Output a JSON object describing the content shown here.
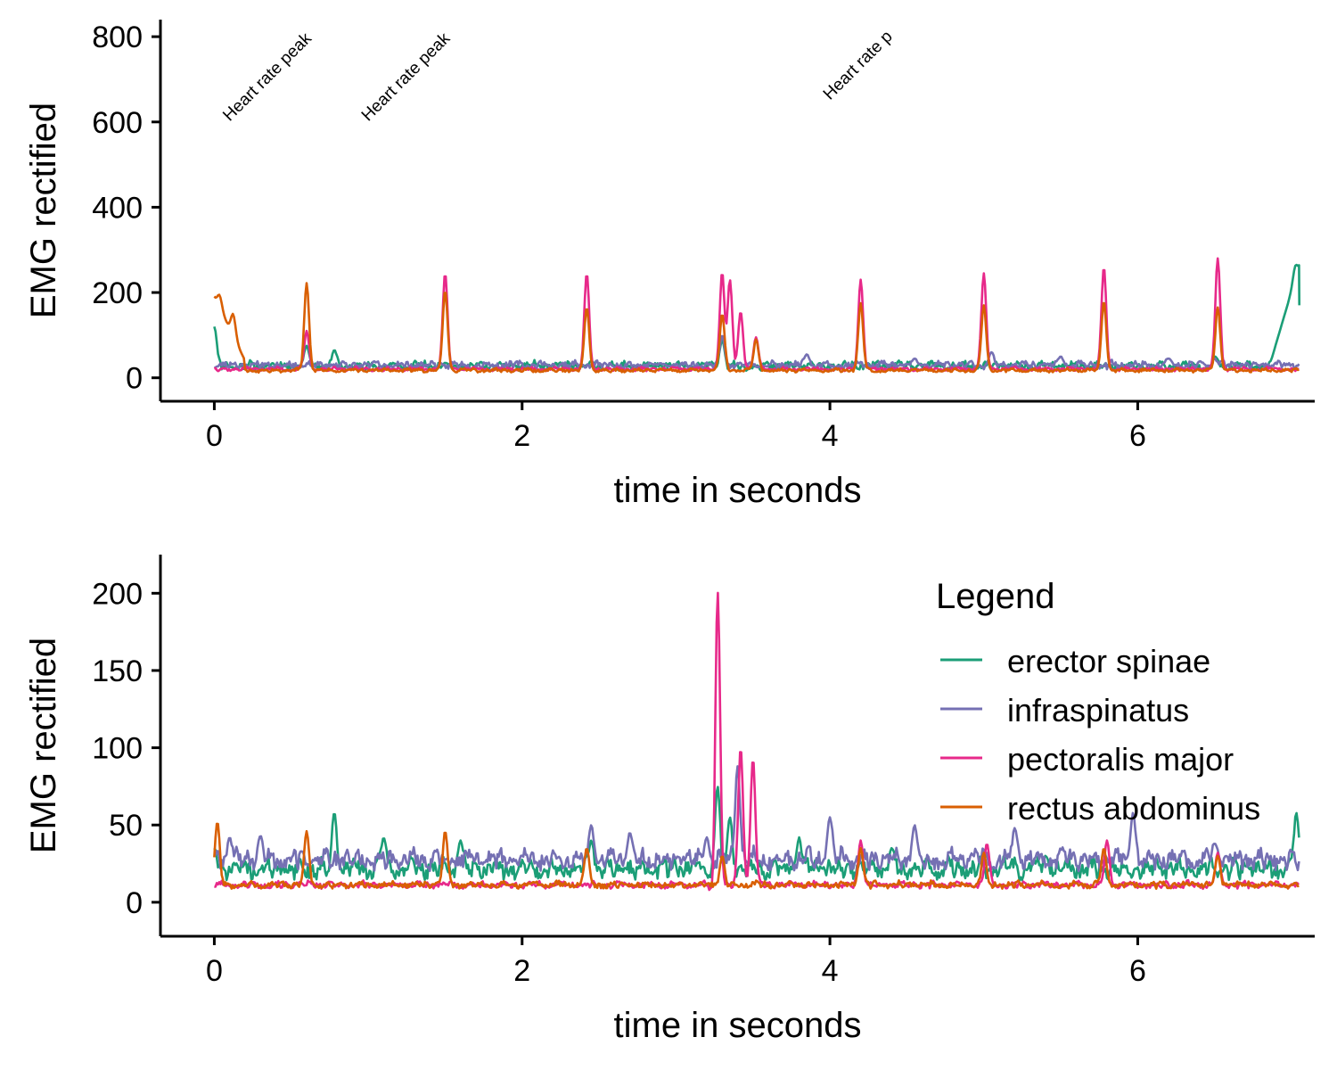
{
  "chart_data": [
    {
      "type": "line",
      "xlabel": "time in seconds",
      "ylabel": "EMG rectified",
      "xlim": [
        -0.35,
        7.15
      ],
      "ylim": [
        -55,
        840
      ],
      "x_ticks": [
        0,
        2,
        4,
        6
      ],
      "y_ticks": [
        0,
        200,
        400,
        600,
        800
      ],
      "grid": false,
      "legend": "none",
      "annotations": [
        {
          "text": "Heart rate peak",
          "x": 0.1,
          "y": 600
        },
        {
          "text": "Heart rate peak",
          "x": 1.0,
          "y": 600
        },
        {
          "text": "Heart rate p",
          "x": 4.0,
          "y": 650
        }
      ],
      "series": [
        {
          "name": "erector spinae",
          "color": "#1B9E77",
          "baseline": 22,
          "noise": 14,
          "seed": 11,
          "spikes": [
            [
              0.0,
              120
            ],
            [
              0.6,
              75
            ],
            [
              0.78,
              65
            ],
            [
              1.5,
              35
            ],
            [
              2.42,
              30
            ],
            [
              3.3,
              90
            ],
            [
              5.0,
              25
            ],
            [
              6.5,
              50
            ],
            [
              7.03,
              265
            ]
          ],
          "ramps": [
            [
              6.85,
              7.05,
              20,
              265
            ]
          ],
          "end": [
            7.05,
            170
          ]
        },
        {
          "name": "infraspinatus",
          "color": "#7570B3",
          "baseline": 25,
          "noise": 12,
          "seed": 23,
          "spikes": [
            [
              3.3,
              100
            ],
            [
              3.5,
              30
            ],
            [
              3.85,
              55
            ],
            [
              4.55,
              45
            ],
            [
              5.05,
              60
            ],
            [
              5.5,
              50
            ],
            [
              6.2,
              45
            ],
            [
              6.5,
              45
            ]
          ],
          "ramps": [],
          "end": null
        },
        {
          "name": "pectoralis major",
          "color": "#E7298A",
          "baseline": 18,
          "noise": 6,
          "seed": 37,
          "spikes": [
            [
              0.6,
              110
            ],
            [
              1.5,
              245
            ],
            [
              2.42,
              245
            ],
            [
              3.3,
              248
            ],
            [
              3.35,
              230
            ],
            [
              3.42,
              155
            ],
            [
              3.52,
              95
            ],
            [
              4.2,
              230
            ],
            [
              5.0,
              245
            ],
            [
              5.78,
              260
            ],
            [
              6.52,
              280
            ]
          ],
          "ramps": [],
          "end": null
        },
        {
          "name": "rectus abdominus",
          "color": "#D95F02",
          "baseline": 15,
          "noise": 6,
          "seed": 53,
          "spikes": [
            [
              0.03,
              195
            ],
            [
              0.12,
              150
            ],
            [
              0.6,
              222
            ],
            [
              1.5,
              205
            ],
            [
              2.42,
              165
            ],
            [
              3.3,
              150
            ],
            [
              3.52,
              90
            ],
            [
              4.2,
              175
            ],
            [
              5.0,
              170
            ],
            [
              5.78,
              180
            ],
            [
              6.52,
              165
            ]
          ],
          "ramps": [
            [
              0.0,
              0.2,
              190,
              40
            ]
          ],
          "end": null
        }
      ]
    },
    {
      "type": "line",
      "xlabel": "time in seconds",
      "ylabel": "EMG rectified",
      "xlim": [
        -0.35,
        7.15
      ],
      "ylim": [
        -22,
        225
      ],
      "x_ticks": [
        0,
        2,
        4,
        6
      ],
      "y_ticks": [
        0,
        50,
        100,
        150,
        200
      ],
      "grid": false,
      "legend": "top-right",
      "legend_title": "Legend",
      "series": [
        {
          "name": "erector spinae",
          "color": "#1B9E77",
          "baseline": 18,
          "noise": 9,
          "seed": 71,
          "spikes": [
            [
              0.0,
              35
            ],
            [
              0.78,
              58
            ],
            [
              1.1,
              42
            ],
            [
              1.6,
              40
            ],
            [
              2.45,
              40
            ],
            [
              3.27,
              75
            ],
            [
              3.35,
              55
            ],
            [
              3.8,
              42
            ],
            [
              4.4,
              35
            ],
            [
              5.4,
              30
            ],
            [
              7.03,
              58
            ]
          ],
          "ramps": [],
          "end": null
        },
        {
          "name": "infraspinatus",
          "color": "#7570B3",
          "baseline": 24,
          "noise": 9,
          "seed": 89,
          "spikes": [
            [
              0.1,
              42
            ],
            [
              0.3,
              43
            ],
            [
              2.45,
              50
            ],
            [
              2.7,
              45
            ],
            [
              3.2,
              42
            ],
            [
              3.4,
              88
            ],
            [
              4.0,
              55
            ],
            [
              4.55,
              50
            ],
            [
              5.2,
              48
            ],
            [
              5.97,
              58
            ],
            [
              6.5,
              38
            ]
          ],
          "ramps": [],
          "end": null
        },
        {
          "name": "pectoralis major",
          "color": "#E7298A",
          "baseline": 10,
          "noise": 3,
          "seed": 101,
          "spikes": [
            [
              3.27,
              210
            ],
            [
              3.25,
              -12
            ],
            [
              3.42,
              100
            ],
            [
              3.5,
              93
            ],
            [
              4.2,
              40
            ],
            [
              5.02,
              38
            ],
            [
              5.8,
              40
            ],
            [
              6.52,
              32
            ]
          ],
          "ramps": [],
          "end": null
        },
        {
          "name": "rectus abdominus",
          "color": "#D95F02",
          "baseline": 10,
          "noise": 3,
          "seed": 127,
          "spikes": [
            [
              0.02,
              52
            ],
            [
              0.6,
              46
            ],
            [
              1.5,
              46
            ],
            [
              2.42,
              35
            ],
            [
              3.3,
              30
            ],
            [
              4.2,
              35
            ],
            [
              5.0,
              32
            ],
            [
              5.78,
              35
            ],
            [
              6.52,
              30
            ]
          ],
          "ramps": [],
          "end": null
        }
      ]
    }
  ]
}
